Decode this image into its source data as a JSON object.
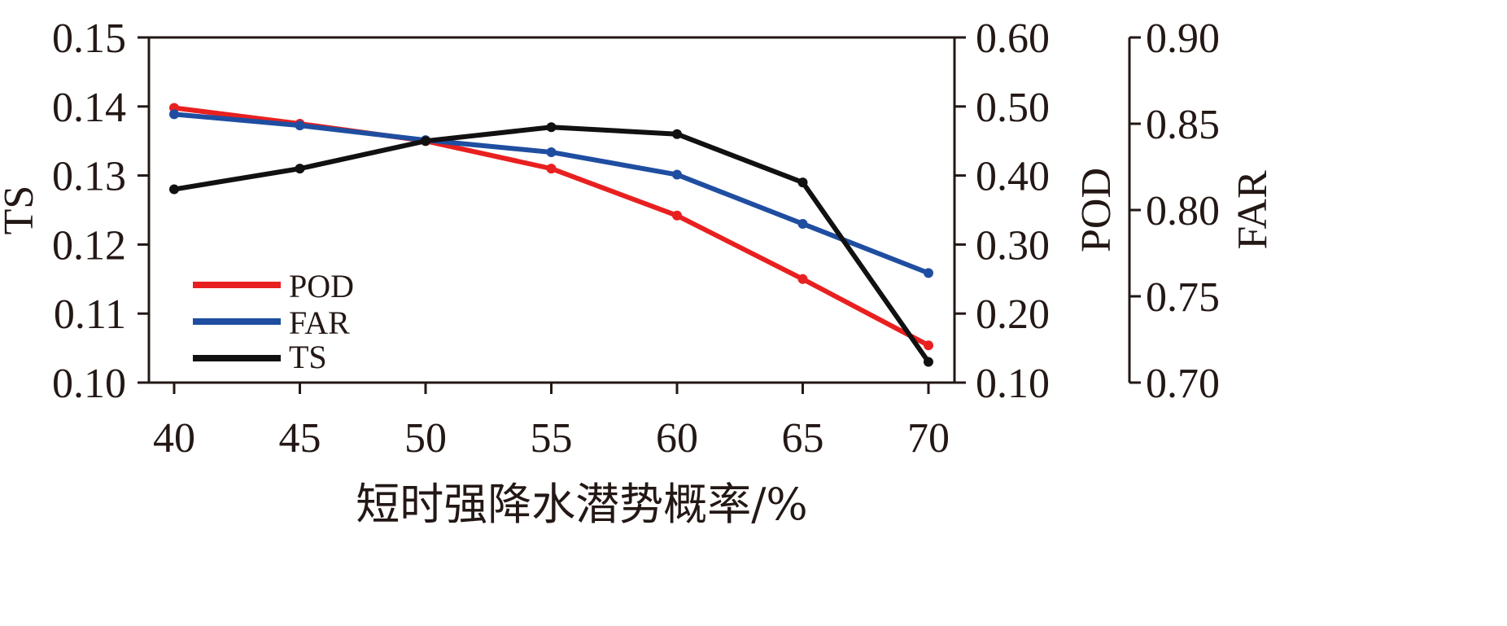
{
  "chart_data": {
    "type": "line",
    "xlabel": "短时强降水潜势概率/%",
    "x": [
      40,
      45,
      50,
      55,
      60,
      65,
      70
    ],
    "x_tick_labels": [
      "40",
      "45",
      "50",
      "55",
      "60",
      "65",
      "70"
    ],
    "axes": {
      "ts": {
        "label": "TS",
        "ylim": [
          0.1,
          0.15
        ],
        "ticks": [
          "0.10",
          "0.11",
          "0.12",
          "0.13",
          "0.14",
          "0.15"
        ],
        "side": "left"
      },
      "pod": {
        "label": "POD",
        "ylim": [
          0.1,
          0.6
        ],
        "ticks": [
          "0.10",
          "0.20",
          "0.30",
          "0.40",
          "0.50",
          "0.60"
        ],
        "side": "right"
      },
      "far": {
        "label": "FAR",
        "ylim": [
          0.7,
          0.9
        ],
        "ticks": [
          "0.70",
          "0.75",
          "0.80",
          "0.85",
          "0.90"
        ],
        "side": "far-right"
      }
    },
    "series": [
      {
        "name": "POD",
        "axis": "pod",
        "color": "#e8201f",
        "values": [
          0.498,
          0.475,
          0.45,
          0.41,
          0.342,
          0.25,
          0.154
        ]
      },
      {
        "name": "FAR",
        "axis": "far",
        "color": "#1f4ea1",
        "values": [
          0.8555,
          0.849,
          0.8405,
          0.8335,
          0.8205,
          0.792,
          0.7635
        ]
      },
      {
        "name": "TS",
        "axis": "ts",
        "color": "#111111",
        "values": [
          0.128,
          0.131,
          0.135,
          0.137,
          0.136,
          0.129,
          0.103
        ]
      }
    ],
    "legend": {
      "position": "lower-left",
      "entries": [
        "POD",
        "FAR",
        "TS"
      ]
    },
    "grid": false
  }
}
